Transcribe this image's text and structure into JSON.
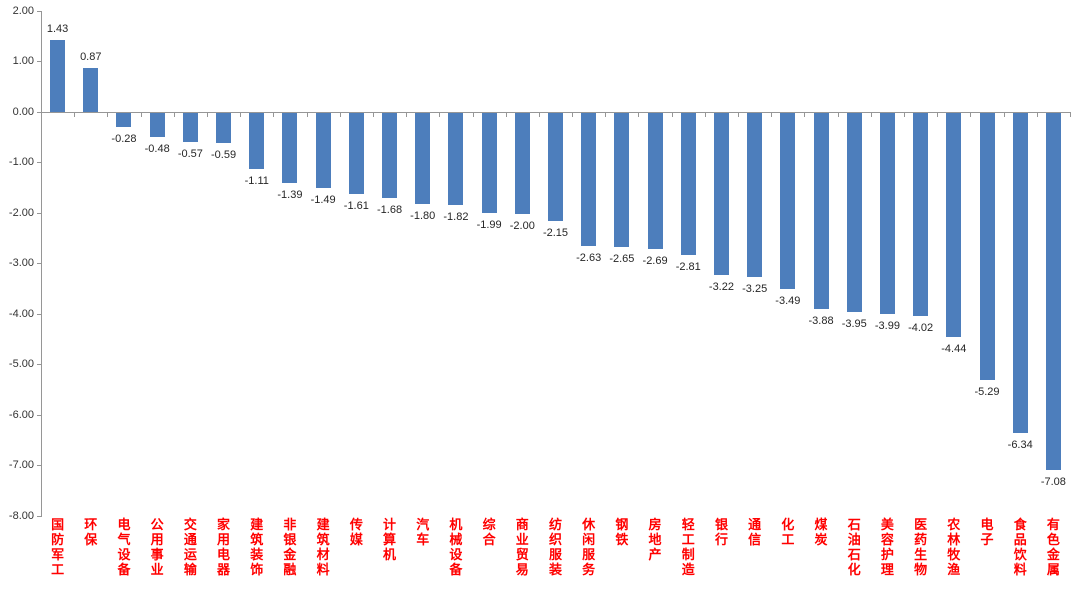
{
  "chart_data": {
    "type": "bar",
    "title": "",
    "xlabel": "",
    "ylabel": "",
    "categories": [
      "国防军工",
      "环保",
      "电气设备",
      "公用事业",
      "交通运输",
      "家用电器",
      "建筑装饰",
      "非银金融",
      "建筑材料",
      "传媒",
      "计算机",
      "汽车",
      "机械设备",
      "综合",
      "商业贸易",
      "纺织服装",
      "休闲服务",
      "钢铁",
      "房地产",
      "轻工制造",
      "银行",
      "通信",
      "化工",
      "煤炭",
      "石油石化",
      "美容护理",
      "医药生物",
      "农林牧渔",
      "电子",
      "食品饮料",
      "有色金属"
    ],
    "values": [
      1.43,
      0.87,
      -0.28,
      -0.48,
      -0.57,
      -0.59,
      -1.11,
      -1.39,
      -1.49,
      -1.61,
      -1.68,
      -1.8,
      -1.82,
      -1.99,
      -2.0,
      -2.15,
      -2.63,
      -2.65,
      -2.69,
      -2.81,
      -3.22,
      -3.25,
      -3.49,
      -3.88,
      -3.95,
      -3.99,
      -4.02,
      -4.44,
      -5.29,
      -6.34,
      -7.08
    ],
    "value_label_format": "0.00",
    "ylim": [
      -8,
      2
    ],
    "y_tick_labels": [
      "2.00",
      "1.00",
      "0.00",
      "-1.00",
      "-2.00",
      "-3.00",
      "-4.00",
      "-5.00",
      "-6.00",
      "-7.00",
      "-8.00"
    ],
    "y_tick_step": 1.0,
    "grid": false,
    "legend": "none",
    "data_labels_position": "outside-end",
    "bar_color": "#4D7EBC",
    "category_label_color": "#FF0000",
    "value_label_color": "#262626",
    "axis_color": "#969696",
    "background_color": "#FFFFFF"
  }
}
